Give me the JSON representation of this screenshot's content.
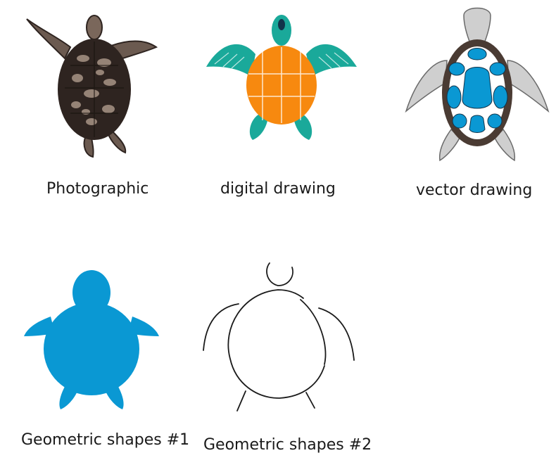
{
  "captions": {
    "photographic": "Photographic",
    "digital": "digital drawing",
    "vector": "vector drawing",
    "geo1": "Geometric shapes #1",
    "geo2": "Geometric shapes #2"
  },
  "colors": {
    "photo_shell_dark": "#2e2420",
    "photo_shell_light": "#a89486",
    "photo_skin": "#6b5a50",
    "digital_flipper": "#1aa99a",
    "digital_shell": "#f7890f",
    "digital_head_dark": "#12344a",
    "vector_skin": "#cfcfcf",
    "vector_rim": "#4a3b33",
    "vector_spots": "#0a98d3",
    "geo1_fill": "#0a98d3",
    "geo2_stroke": "#1a1a1a"
  }
}
